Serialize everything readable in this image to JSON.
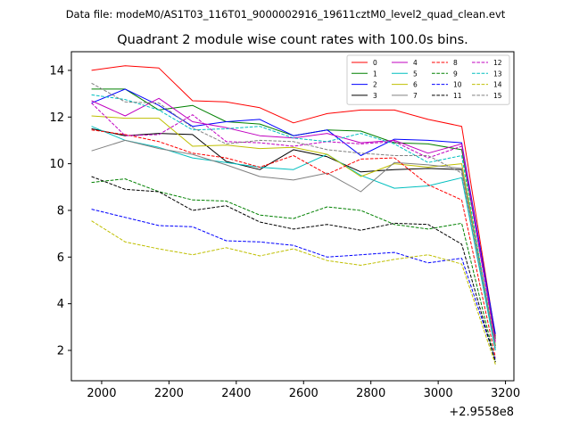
{
  "figure": {
    "suptitle": "Data file: modeM0/AS1T03_116T01_9000002916_19611cztM0_level2_quad_clean.evt",
    "title": "Quadrant 2 module wise count rates with 100.0s bins.",
    "x_offset_label": "+2.9558e8"
  },
  "chart_data": {
    "type": "line",
    "title": "Quadrant 2 module wise count rates with 100.0s bins.",
    "xlabel": "",
    "ylabel": "",
    "x_offset": 295580000,
    "xlim": [
      1910,
      3225
    ],
    "ylim": [
      0.7,
      14.8
    ],
    "xticks": [
      2000,
      2200,
      2400,
      2600,
      2800,
      3000,
      3200
    ],
    "yticks": [
      2,
      4,
      6,
      8,
      10,
      12,
      14
    ],
    "grid": false,
    "legend_position": "top-right",
    "legend_columns": 4,
    "x": [
      1970,
      2070,
      2170,
      2270,
      2370,
      2470,
      2570,
      2670,
      2770,
      2870,
      2970,
      3070,
      3170
    ],
    "series": [
      {
        "name": "0",
        "color": "#ff0000",
        "dashed": false,
        "values": [
          14.0,
          14.2,
          14.1,
          12.7,
          12.65,
          12.4,
          11.75,
          12.15,
          12.3,
          12.3,
          11.9,
          11.6,
          2.6
        ]
      },
      {
        "name": "1",
        "color": "#008000",
        "dashed": false,
        "values": [
          13.2,
          13.2,
          12.3,
          12.5,
          11.8,
          11.7,
          11.2,
          11.45,
          11.4,
          10.9,
          10.85,
          10.6,
          2.5
        ]
      },
      {
        "name": "2",
        "color": "#0000ff",
        "dashed": false,
        "values": [
          12.6,
          13.2,
          12.5,
          11.6,
          11.8,
          11.9,
          11.2,
          11.45,
          10.35,
          11.05,
          11.0,
          10.9,
          2.7
        ]
      },
      {
        "name": "3",
        "color": "#000000",
        "dashed": false,
        "values": [
          11.5,
          11.2,
          11.3,
          11.25,
          10.1,
          9.75,
          10.6,
          10.3,
          9.65,
          9.75,
          9.8,
          9.75,
          2.2
        ]
      },
      {
        "name": "4",
        "color": "#c000c0",
        "dashed": false,
        "values": [
          12.7,
          12.05,
          12.8,
          11.8,
          11.55,
          11.2,
          11.1,
          11.3,
          10.9,
          11.0,
          10.45,
          10.85,
          2.4
        ]
      },
      {
        "name": "5",
        "color": "#00bfbf",
        "dashed": false,
        "values": [
          11.6,
          11.0,
          10.7,
          10.25,
          10.05,
          9.85,
          9.75,
          10.4,
          9.5,
          8.95,
          9.05,
          9.4,
          2.0
        ]
      },
      {
        "name": "6",
        "color": "#bfbf00",
        "dashed": false,
        "values": [
          12.05,
          11.95,
          11.95,
          10.75,
          10.8,
          10.65,
          10.7,
          10.4,
          9.45,
          10.0,
          9.85,
          10.0,
          2.2
        ]
      },
      {
        "name": "7",
        "color": "#808080",
        "dashed": false,
        "values": [
          10.55,
          11.0,
          10.65,
          10.4,
          9.95,
          9.45,
          9.3,
          9.6,
          8.8,
          10.05,
          9.95,
          9.8,
          2.1
        ]
      },
      {
        "name": "8",
        "color": "#ff0000",
        "dashed": true,
        "values": [
          11.45,
          11.25,
          10.95,
          10.45,
          10.25,
          9.85,
          10.35,
          9.55,
          10.2,
          10.25,
          9.1,
          8.45,
          1.7
        ]
      },
      {
        "name": "9",
        "color": "#008000",
        "dashed": true,
        "values": [
          9.2,
          9.35,
          8.8,
          8.45,
          8.4,
          7.8,
          7.65,
          8.15,
          8.0,
          7.4,
          7.2,
          7.45,
          1.5
        ]
      },
      {
        "name": "10",
        "color": "#0000ff",
        "dashed": true,
        "values": [
          8.05,
          7.7,
          7.35,
          7.3,
          6.7,
          6.65,
          6.5,
          6.0,
          6.1,
          6.2,
          5.75,
          5.95,
          1.6
        ]
      },
      {
        "name": "11",
        "color": "#000000",
        "dashed": true,
        "values": [
          9.45,
          8.9,
          8.8,
          8.0,
          8.2,
          7.5,
          7.2,
          7.4,
          7.15,
          7.45,
          7.4,
          6.55,
          1.5
        ]
      },
      {
        "name": "12",
        "color": "#c000c0",
        "dashed": true,
        "values": [
          12.6,
          11.2,
          11.25,
          12.1,
          10.95,
          10.9,
          10.75,
          10.95,
          10.85,
          10.95,
          10.25,
          10.75,
          2.3
        ]
      },
      {
        "name": "13",
        "color": "#00bfbf",
        "dashed": true,
        "values": [
          12.95,
          12.75,
          12.3,
          11.45,
          11.5,
          11.6,
          11.1,
          10.95,
          11.3,
          10.85,
          10.05,
          10.35,
          2.0
        ]
      },
      {
        "name": "14",
        "color": "#bfbf00",
        "dashed": true,
        "values": [
          7.55,
          6.65,
          6.35,
          6.1,
          6.4,
          6.05,
          6.35,
          5.85,
          5.65,
          5.9,
          6.1,
          5.7,
          1.4
        ]
      },
      {
        "name": "15",
        "color": "#808080",
        "dashed": true,
        "values": [
          13.45,
          12.65,
          12.6,
          11.55,
          10.85,
          11.0,
          10.95,
          10.6,
          10.45,
          10.35,
          10.35,
          9.6,
          2.2
        ]
      }
    ]
  }
}
